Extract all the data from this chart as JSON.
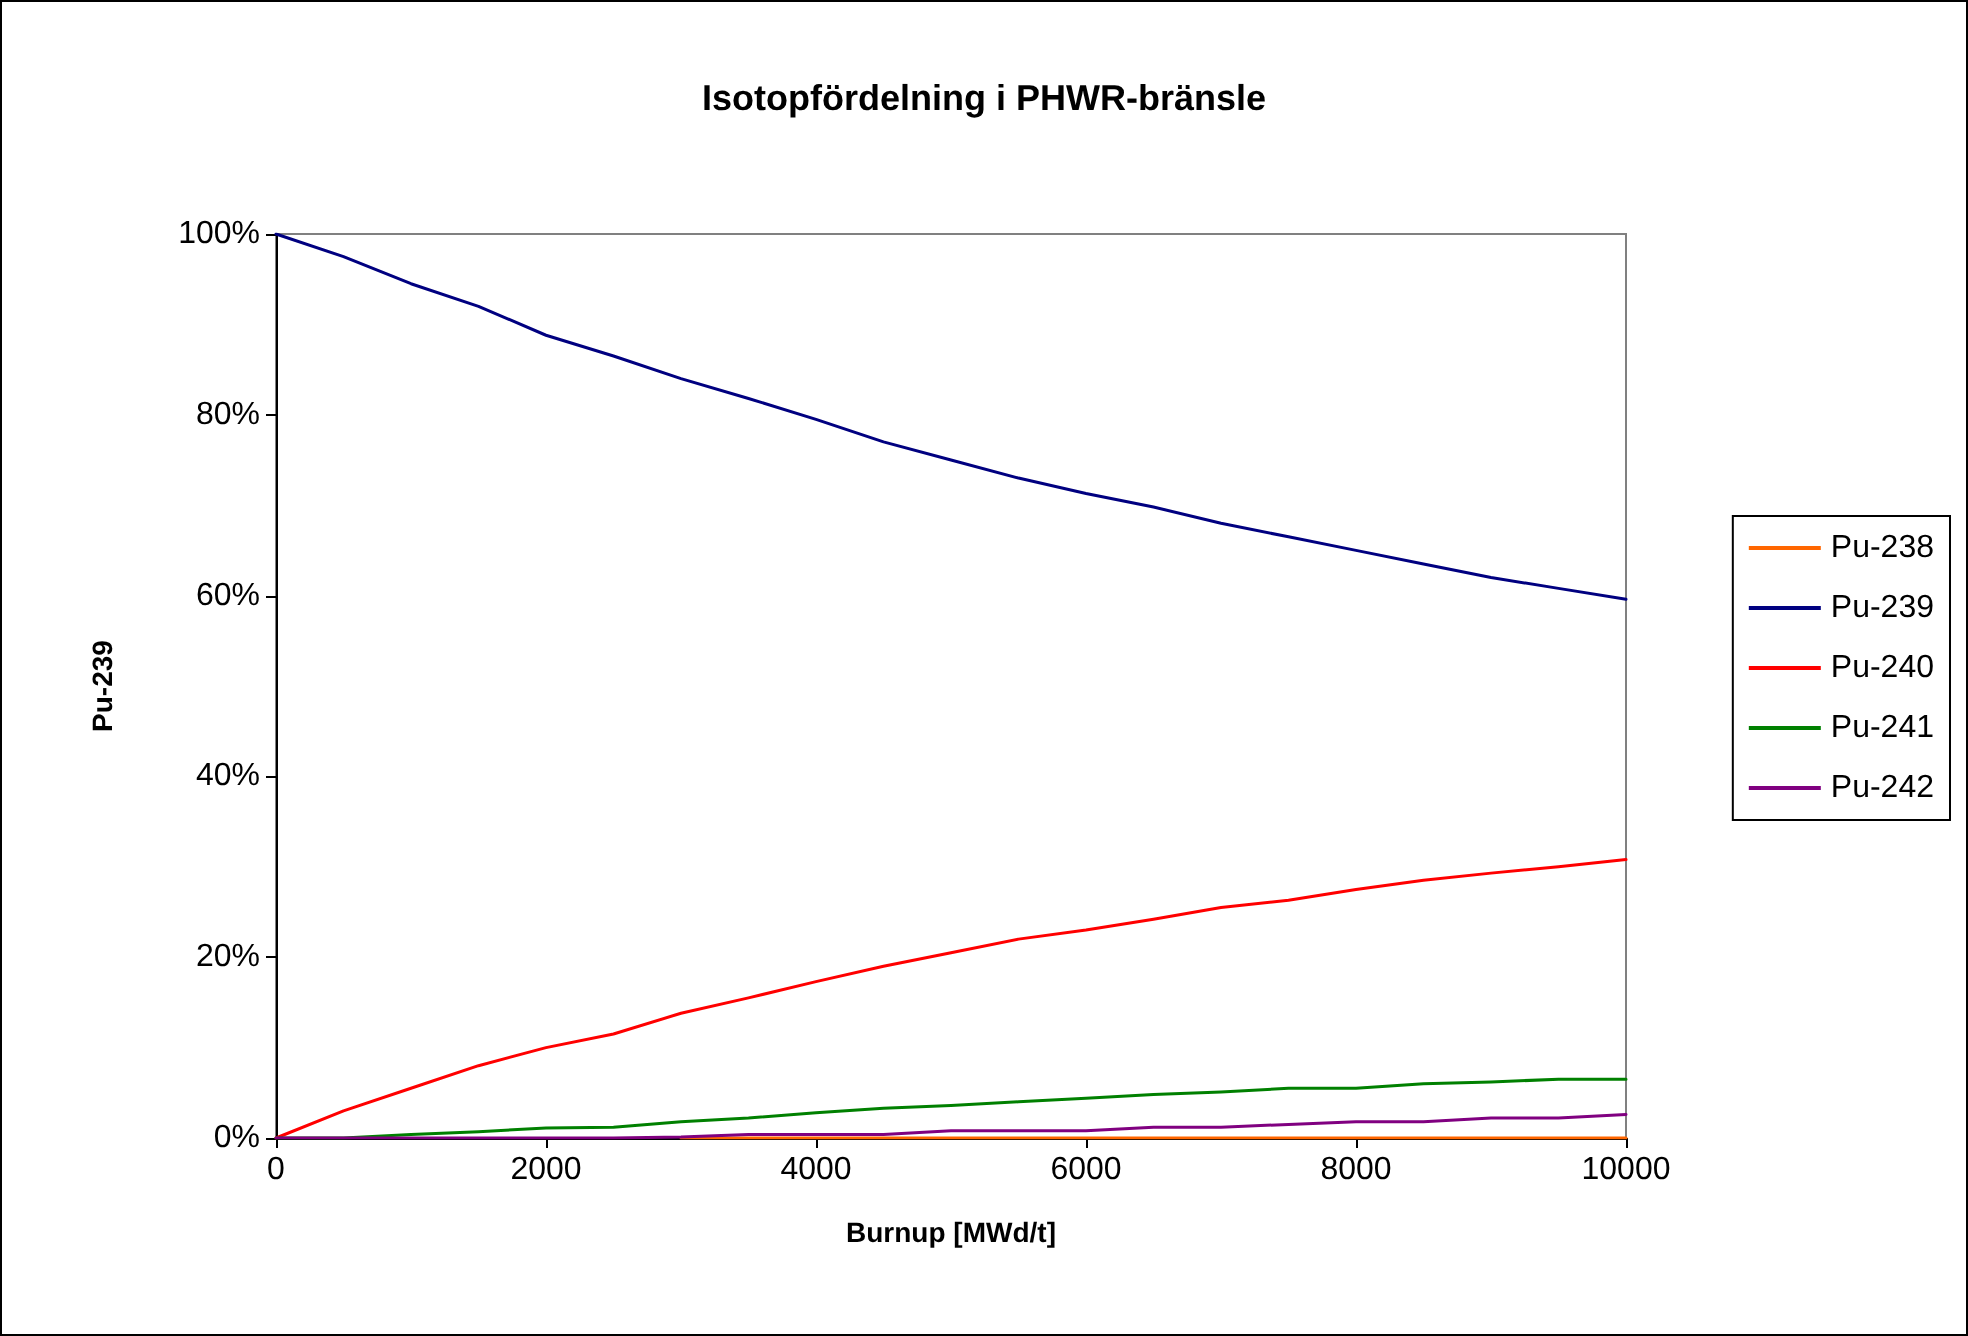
{
  "chart_data": {
    "type": "line",
    "title": "Isotopfördelning i PHWR-bränsle",
    "xlabel": "Burnup [MWd/t]",
    "ylabel": "Pu-239",
    "x": [
      0,
      500,
      1000,
      1500,
      2000,
      2500,
      3000,
      3500,
      4000,
      4500,
      5000,
      5500,
      6000,
      6500,
      7000,
      7500,
      8000,
      8500,
      9000,
      9500,
      10000
    ],
    "series": [
      {
        "name": "Pu-238",
        "color": "#ff6600",
        "values": [
          null,
          null,
          null,
          null,
          null,
          null,
          0,
          0,
          0,
          0,
          0,
          0,
          0,
          0,
          0,
          0,
          0,
          0,
          0,
          0,
          0
        ]
      },
      {
        "name": "Pu-239",
        "color": "#000080",
        "values": [
          100,
          97.5,
          94.5,
          92,
          88.8,
          86.5,
          84,
          81.8,
          79.5,
          77,
          75,
          73,
          71.3,
          69.8,
          68,
          66.5,
          65,
          63.5,
          62,
          60.8,
          59.6
        ]
      },
      {
        "name": "Pu-240",
        "color": "#ff0000",
        "values": [
          0,
          3,
          5.5,
          8,
          10,
          11.5,
          13.8,
          15.5,
          17.3,
          19,
          20.5,
          22,
          23,
          24.2,
          25.5,
          26.3,
          27.5,
          28.5,
          29.3,
          30,
          30.8
        ]
      },
      {
        "name": "Pu-241",
        "color": "#008000",
        "values": [
          0,
          0,
          0.4,
          0.7,
          1.1,
          1.2,
          1.8,
          2.2,
          2.8,
          3.3,
          3.6,
          4,
          4.4,
          4.8,
          5.1,
          5.5,
          5.5,
          6,
          6.2,
          6.5,
          6.5
        ]
      },
      {
        "name": "Pu-242",
        "color": "#800080",
        "values": [
          0,
          0,
          0,
          0,
          0,
          0,
          0.1,
          0.4,
          0.4,
          0.4,
          0.8,
          0.8,
          0.8,
          1.2,
          1.2,
          1.5,
          1.8,
          1.8,
          2.2,
          2.2,
          2.6
        ]
      }
    ],
    "xlim": [
      0,
      10000
    ],
    "xticks": [
      0,
      2000,
      4000,
      6000,
      8000,
      10000
    ],
    "ylim": [
      0,
      100
    ],
    "yticks": [
      {
        "value": 0,
        "label": "0%"
      },
      {
        "value": 20,
        "label": "20%"
      },
      {
        "value": 40,
        "label": "40%"
      },
      {
        "value": 60,
        "label": "60%"
      },
      {
        "value": 80,
        "label": "80%"
      },
      {
        "value": 100,
        "label": "100%"
      }
    ],
    "grid": false,
    "legend": "right",
    "marker": "none",
    "line_style": "solid"
  }
}
